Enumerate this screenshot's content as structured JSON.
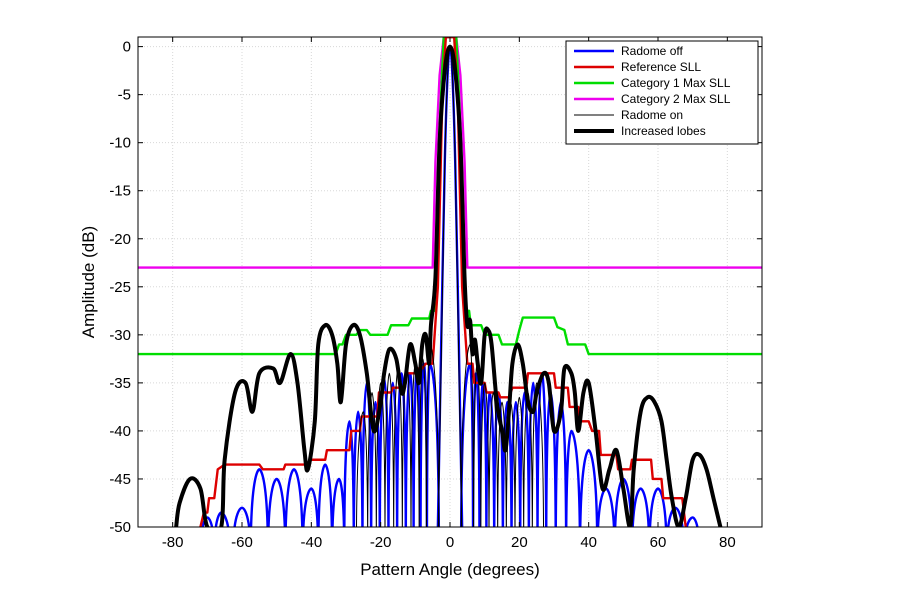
{
  "chart_data": {
    "type": "line",
    "title": "",
    "xlabel": "Pattern Angle (degrees)",
    "ylabel": "Amplitude (dB)",
    "xlim": [
      -90,
      90
    ],
    "ylim": [
      -50,
      1
    ],
    "grid": true,
    "legend_position": "top-right",
    "x_ticks": [
      {
        "value": -80,
        "label": "-80"
      },
      {
        "value": -60,
        "label": "-60"
      },
      {
        "value": -40,
        "label": "-40"
      },
      {
        "value": -20,
        "label": "-20"
      },
      {
        "value": 0,
        "label": "0"
      },
      {
        "value": 20,
        "label": "20"
      },
      {
        "value": 40,
        "label": "40"
      },
      {
        "value": 60,
        "label": "60"
      },
      {
        "value": 80,
        "label": "80"
      }
    ],
    "y_ticks": [
      {
        "value": 0,
        "label": "0"
      },
      {
        "value": -5,
        "label": "-5"
      },
      {
        "value": -10,
        "label": "-10"
      },
      {
        "value": -15,
        "label": "-15"
      },
      {
        "value": -20,
        "label": "-20"
      },
      {
        "value": -25,
        "label": "-25"
      },
      {
        "value": -30,
        "label": "-30"
      },
      {
        "value": -35,
        "label": "-35"
      },
      {
        "value": -40,
        "label": "-40"
      },
      {
        "value": -45,
        "label": "-45"
      },
      {
        "value": -50,
        "label": "-50"
      }
    ],
    "series": [
      {
        "name": "Radome off",
        "color": "#0000ff",
        "style": "lobes",
        "main_beam": [
          [
            -3.5,
            -50
          ],
          [
            -2.5,
            -30
          ],
          [
            -1.5,
            -12
          ],
          [
            -0.7,
            -3
          ],
          [
            0,
            0
          ],
          [
            0.7,
            -3
          ],
          [
            1.5,
            -12
          ],
          [
            2.5,
            -30
          ],
          [
            3.5,
            -50
          ]
        ],
        "lobes": [
          [
            -70,
            -49
          ],
          [
            -66,
            -48.5
          ],
          [
            -60,
            -48
          ],
          [
            -55,
            -44
          ],
          [
            -50,
            -45
          ],
          [
            -45,
            -44
          ],
          [
            -40,
            -46
          ],
          [
            -36,
            -43.5
          ],
          [
            -32,
            -45
          ],
          [
            -29,
            -39
          ],
          [
            -26.5,
            -38
          ],
          [
            -24,
            -35
          ],
          [
            -21.5,
            -37
          ],
          [
            -19,
            -34.5
          ],
          [
            -16.5,
            -35
          ],
          [
            -14,
            -34
          ],
          [
            -11.5,
            -34
          ],
          [
            -9.5,
            -33.5
          ],
          [
            -7.5,
            -33
          ],
          [
            -5.8,
            -33
          ],
          [
            5.8,
            -33
          ],
          [
            7.5,
            -34
          ],
          [
            9.5,
            -35
          ],
          [
            11.5,
            -36
          ],
          [
            14,
            -36
          ],
          [
            16.5,
            -37
          ],
          [
            19,
            -37
          ],
          [
            21.5,
            -36
          ],
          [
            24,
            -35
          ],
          [
            26.5,
            -34
          ],
          [
            29,
            -36
          ],
          [
            32,
            -37
          ],
          [
            35,
            -40
          ],
          [
            40,
            -42
          ],
          [
            45,
            -46
          ],
          [
            50,
            -45
          ],
          [
            55,
            -46
          ],
          [
            60,
            -46
          ],
          [
            65,
            -48
          ],
          [
            70,
            -49
          ]
        ]
      },
      {
        "name": "Reference SLL",
        "color": "#dd0000",
        "style": "steps",
        "points": [
          [
            -72,
            -50
          ],
          [
            -71,
            -48.5
          ],
          [
            -70,
            -48.5
          ],
          [
            -69.5,
            -47
          ],
          [
            -68,
            -47
          ],
          [
            -67,
            -44
          ],
          [
            -65,
            -43.5
          ],
          [
            -55,
            -43.5
          ],
          [
            -54,
            -44
          ],
          [
            -48,
            -44
          ],
          [
            -47.5,
            -43.5
          ],
          [
            -41,
            -43.5
          ],
          [
            -40.5,
            -43
          ],
          [
            -36,
            -43
          ],
          [
            -35.5,
            -42
          ],
          [
            -29,
            -42
          ],
          [
            -28.5,
            -40
          ],
          [
            -26,
            -40
          ],
          [
            -25.5,
            -38.5
          ],
          [
            -21,
            -38.5
          ],
          [
            -20.5,
            -36
          ],
          [
            -17,
            -36
          ],
          [
            -16.5,
            -35.5
          ],
          [
            -13,
            -35.5
          ],
          [
            -12.5,
            -34
          ],
          [
            -10,
            -34
          ],
          [
            -9.5,
            -33.5
          ],
          [
            -8,
            -33.5
          ],
          [
            -7,
            -33
          ],
          [
            -5,
            -33
          ],
          [
            -3.5,
            -25
          ],
          [
            -2.2,
            -5
          ],
          [
            -1.2,
            1
          ],
          [
            1.2,
            1
          ],
          [
            2.2,
            -5
          ],
          [
            3.5,
            -25
          ],
          [
            5,
            -33
          ],
          [
            6.5,
            -33
          ],
          [
            7,
            -35
          ],
          [
            10,
            -35
          ],
          [
            10.5,
            -36
          ],
          [
            14,
            -36
          ],
          [
            14.5,
            -36.5
          ],
          [
            17,
            -36.5
          ],
          [
            18,
            -35.5
          ],
          [
            22,
            -35.5
          ],
          [
            22.5,
            -34
          ],
          [
            30,
            -34
          ],
          [
            30.5,
            -35.5
          ],
          [
            34,
            -35.5
          ],
          [
            34.5,
            -37.5
          ],
          [
            37,
            -37.5
          ],
          [
            37.5,
            -39
          ],
          [
            40,
            -39
          ],
          [
            41,
            -40
          ],
          [
            43,
            -40
          ],
          [
            43.5,
            -42.5
          ],
          [
            48,
            -42.5
          ],
          [
            48.5,
            -44
          ],
          [
            52,
            -44
          ],
          [
            52.5,
            -43
          ],
          [
            58,
            -43
          ],
          [
            58.5,
            -45
          ],
          [
            61,
            -45
          ],
          [
            61.5,
            -47
          ],
          [
            67,
            -47
          ],
          [
            67.5,
            -48.5
          ],
          [
            68,
            -50
          ]
        ]
      },
      {
        "name": "Category 1 Max SLL",
        "color": "#00dd00",
        "style": "steps",
        "points": [
          [
            -90,
            -32
          ],
          [
            -33,
            -32
          ],
          [
            -32,
            -31
          ],
          [
            -31,
            -31
          ],
          [
            -30,
            -30
          ],
          [
            -27,
            -30
          ],
          [
            -26,
            -29.5
          ],
          [
            -24,
            -29.5
          ],
          [
            -23,
            -30
          ],
          [
            -18,
            -30
          ],
          [
            -17,
            -29
          ],
          [
            -12,
            -29
          ],
          [
            -11,
            -28.3
          ],
          [
            -6,
            -28.3
          ],
          [
            -5.5,
            -27.5
          ],
          [
            -4.5,
            -27.5
          ],
          [
            -3.2,
            -10
          ],
          [
            -1.8,
            1
          ],
          [
            1.8,
            1
          ],
          [
            3.2,
            -10
          ],
          [
            4.5,
            -27.5
          ],
          [
            5.5,
            -27.5
          ],
          [
            6,
            -29
          ],
          [
            9,
            -29
          ],
          [
            10,
            -30
          ],
          [
            14,
            -30
          ],
          [
            15,
            -31
          ],
          [
            19,
            -31
          ],
          [
            20,
            -29.5
          ],
          [
            21,
            -28.2
          ],
          [
            30,
            -28.2
          ],
          [
            31,
            -29.2
          ],
          [
            33,
            -29.5
          ],
          [
            34,
            -31
          ],
          [
            39,
            -31
          ],
          [
            40,
            -32
          ],
          [
            90,
            -32
          ]
        ]
      },
      {
        "name": "Category 2 Max SLL",
        "color": "#ee00ee",
        "style": "steps",
        "points": [
          [
            -90,
            -23
          ],
          [
            -5,
            -23
          ],
          [
            -4.2,
            -12
          ],
          [
            -3,
            -3
          ],
          [
            -1.8,
            1
          ],
          [
            1.8,
            1
          ],
          [
            3,
            -3
          ],
          [
            4.2,
            -12
          ],
          [
            5,
            -23
          ],
          [
            90,
            -23
          ]
        ]
      },
      {
        "name": "Radome on",
        "color": "#000000",
        "style": "lobes",
        "main_beam": [
          [
            -3.4,
            -50
          ],
          [
            -2.4,
            -30
          ],
          [
            -1.5,
            -12
          ],
          [
            -0.7,
            -3
          ],
          [
            0,
            0
          ],
          [
            0.7,
            -3
          ],
          [
            1.5,
            -12
          ],
          [
            2.4,
            -30
          ],
          [
            3.4,
            -50
          ]
        ],
        "lobes": [
          [
            -25,
            -38
          ],
          [
            -22.5,
            -36
          ],
          [
            -20,
            -35
          ],
          [
            -17.5,
            -34
          ],
          [
            -15,
            -33.5
          ],
          [
            -12.5,
            -33
          ],
          [
            -10,
            -33
          ],
          [
            -7.8,
            -32.5
          ],
          [
            -5.8,
            -31
          ],
          [
            5.8,
            -31
          ],
          [
            7.8,
            -33
          ],
          [
            10,
            -35
          ],
          [
            12.5,
            -36
          ],
          [
            15,
            -37
          ],
          [
            17.5,
            -37
          ],
          [
            20,
            -36.5
          ],
          [
            22.5,
            -36
          ],
          [
            25,
            -35
          ]
        ]
      },
      {
        "name": "Increased lobes",
        "color": "#000000",
        "style": "bold",
        "points": [
          [
            -79,
            -50
          ],
          [
            -78,
            -47.5
          ],
          [
            -75,
            -45
          ],
          [
            -72,
            -46
          ],
          [
            -70,
            -50
          ],
          [
            -66,
            -50
          ],
          [
            -65,
            -43
          ],
          [
            -62,
            -36
          ],
          [
            -59,
            -35
          ],
          [
            -57,
            -38
          ],
          [
            -55,
            -34
          ],
          [
            -51,
            -33.5
          ],
          [
            -49,
            -35
          ],
          [
            -46,
            -32
          ],
          [
            -44,
            -35
          ],
          [
            -42,
            -42
          ],
          [
            -41,
            -44
          ],
          [
            -39,
            -39
          ],
          [
            -38,
            -31
          ],
          [
            -36,
            -29
          ],
          [
            -34,
            -30
          ],
          [
            -32.5,
            -33
          ],
          [
            -31.5,
            -37
          ],
          [
            -30,
            -31
          ],
          [
            -28,
            -29
          ],
          [
            -26,
            -30
          ],
          [
            -24,
            -34
          ],
          [
            -22,
            -40
          ],
          [
            -20,
            -37
          ],
          [
            -19,
            -34
          ],
          [
            -17.5,
            -31.5
          ],
          [
            -15.5,
            -32.5
          ],
          [
            -14,
            -36
          ],
          [
            -13,
            -35
          ],
          [
            -11.5,
            -31
          ],
          [
            -10,
            -33
          ],
          [
            -9,
            -35
          ],
          [
            -8,
            -31
          ],
          [
            -7,
            -30
          ],
          [
            -6,
            -33
          ],
          [
            -5.5,
            -29
          ],
          [
            -4.2,
            -24
          ],
          [
            -3,
            -10
          ],
          [
            -1.5,
            -2.5
          ],
          [
            0,
            0
          ],
          [
            1.5,
            -2.5
          ],
          [
            3,
            -10
          ],
          [
            4.2,
            -24
          ],
          [
            5,
            -29
          ],
          [
            5.8,
            -28.5
          ],
          [
            6.5,
            -32
          ],
          [
            7.2,
            -30.5
          ],
          [
            8,
            -33
          ],
          [
            9,
            -35
          ],
          [
            10,
            -30
          ],
          [
            11,
            -29.5
          ],
          [
            12,
            -31
          ],
          [
            13.5,
            -37
          ],
          [
            15,
            -40
          ],
          [
            16,
            -42
          ],
          [
            17,
            -38
          ],
          [
            18,
            -33
          ],
          [
            19.5,
            -31
          ],
          [
            21,
            -33
          ],
          [
            22.5,
            -37
          ],
          [
            24,
            -38
          ],
          [
            25,
            -36
          ],
          [
            27,
            -34
          ],
          [
            28.5,
            -35
          ],
          [
            30,
            -40
          ],
          [
            32,
            -38
          ],
          [
            33,
            -33.5
          ],
          [
            35,
            -34
          ],
          [
            36,
            -36
          ],
          [
            37,
            -40
          ],
          [
            38.5,
            -36
          ],
          [
            40,
            -35
          ],
          [
            42,
            -40
          ],
          [
            44,
            -46
          ],
          [
            46,
            -44
          ],
          [
            48,
            -42
          ],
          [
            50,
            -46
          ],
          [
            52,
            -50
          ],
          [
            53,
            -44
          ],
          [
            55,
            -38
          ],
          [
            57,
            -36.5
          ],
          [
            59,
            -37
          ],
          [
            61,
            -39
          ],
          [
            62.5,
            -43
          ],
          [
            64,
            -47
          ],
          [
            66,
            -50
          ],
          [
            68,
            -47
          ],
          [
            70,
            -43
          ],
          [
            72,
            -42.5
          ],
          [
            74,
            -44
          ],
          [
            76,
            -47
          ],
          [
            78,
            -50
          ]
        ]
      }
    ]
  }
}
